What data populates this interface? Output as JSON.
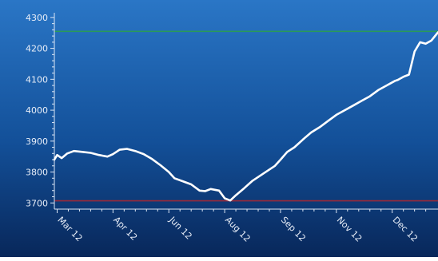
{
  "chart_data": {
    "type": "line",
    "title": "",
    "xlabel": "",
    "ylabel": "",
    "ylim": [
      3680,
      4310
    ],
    "yticks": [
      3700,
      3800,
      3900,
      4000,
      4100,
      4200,
      4300
    ],
    "ytick_labels": [
      "3700",
      "3800",
      "3900",
      "4000",
      "4100",
      "4200",
      "4300"
    ],
    "xtick_labels": [
      "Mar 12",
      "Apr 12",
      "Jun 12",
      "Aug 12",
      "Sep 12",
      "Nov 12",
      "Dec 12"
    ],
    "xtick_positions": [
      0,
      1,
      2,
      3,
      4,
      5,
      6
    ],
    "xlim": [
      -0.05,
      6.82
    ],
    "grid": false,
    "legend": "none",
    "series": [
      {
        "name": "",
        "x": [
          -0.05,
          0.0,
          0.08,
          0.18,
          0.3,
          0.45,
          0.6,
          0.75,
          0.9,
          1.0,
          1.12,
          1.25,
          1.4,
          1.55,
          1.7,
          1.85,
          2.0,
          2.1,
          2.25,
          2.4,
          2.55,
          2.65,
          2.75,
          2.9,
          3.0,
          3.1,
          3.2,
          3.35,
          3.5,
          3.65,
          3.8,
          3.9,
          4.0,
          4.12,
          4.25,
          4.4,
          4.55,
          4.7,
          4.85,
          5.0,
          5.15,
          5.3,
          5.45,
          5.6,
          5.75,
          5.9,
          6.05,
          6.1,
          6.2,
          6.3,
          6.4,
          6.5,
          6.6,
          6.7,
          6.82
        ],
        "values": [
          3840,
          3855,
          3845,
          3860,
          3868,
          3865,
          3862,
          3855,
          3850,
          3858,
          3872,
          3875,
          3868,
          3858,
          3842,
          3822,
          3800,
          3780,
          3770,
          3760,
          3740,
          3738,
          3745,
          3740,
          3715,
          3708,
          3725,
          3748,
          3772,
          3790,
          3808,
          3820,
          3840,
          3865,
          3880,
          3905,
          3928,
          3945,
          3965,
          3985,
          4000,
          4015,
          4030,
          4045,
          4065,
          4080,
          4095,
          4098,
          4108,
          4115,
          4190,
          4220,
          4215,
          4225,
          4252
        ]
      }
    ],
    "reference_lines": [
      {
        "value": 4255,
        "color": "#2a9a5a"
      },
      {
        "value": 3707,
        "color": "#9a2a3a"
      }
    ],
    "colors": {
      "background_top": "#2a76c6",
      "background_bottom": "#08275a",
      "line": "#ffffff",
      "axis": "#dbe6f5",
      "tick_label": "#e8eef8"
    }
  }
}
